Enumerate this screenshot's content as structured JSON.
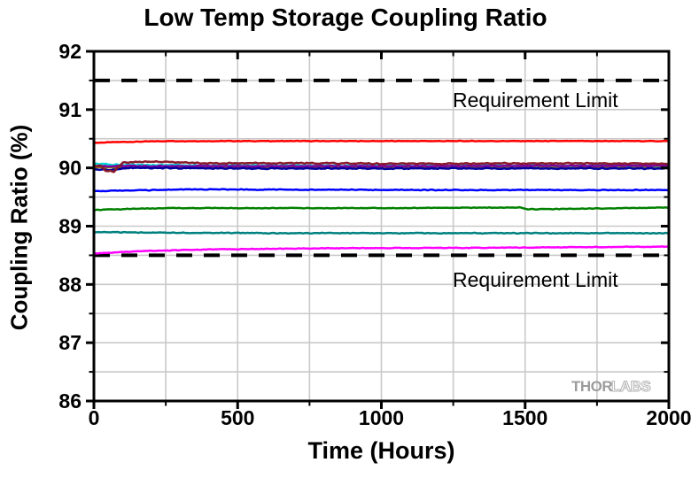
{
  "chart_data": {
    "type": "line",
    "title": "Low Temp Storage Coupling Ratio",
    "xlabel": "Time (Hours)",
    "ylabel": "Coupling Ratio (%)",
    "xlim": [
      0,
      2000
    ],
    "ylim": [
      86,
      92
    ],
    "x_major_ticks": [
      0,
      500,
      1000,
      1500,
      2000
    ],
    "x_tick_labels": [
      "0",
      "500",
      "1000",
      "1500",
      "2000"
    ],
    "x_minor_step": 250,
    "y_major_ticks": [
      86,
      87,
      88,
      89,
      90,
      91,
      92
    ],
    "y_tick_labels": [
      "86",
      "87",
      "88",
      "89",
      "90",
      "91",
      "92"
    ],
    "y_minor_step": 0.5,
    "grid": true,
    "legend": "none",
    "requirement_limits": {
      "upper": 91.5,
      "lower": 88.5,
      "label": "Requirement Limit"
    },
    "colors": {
      "grid": "#c9c9c9",
      "axis": "#000000",
      "limit": "#000000",
      "background": "#ffffff"
    },
    "series": [
      {
        "name": "red",
        "color": "#ff0000",
        "noise": 0.006,
        "keypoints": [
          [
            0,
            90.43
          ],
          [
            60,
            90.44
          ],
          [
            250,
            90.46
          ],
          [
            1000,
            90.46
          ],
          [
            2000,
            90.46
          ]
        ]
      },
      {
        "name": "blue",
        "color": "#0000ff",
        "noise": 0.008,
        "keypoints": [
          [
            0,
            89.6
          ],
          [
            300,
            89.63
          ],
          [
            1200,
            89.62
          ],
          [
            2000,
            89.62
          ]
        ]
      },
      {
        "name": "green",
        "color": "#008000",
        "noise": 0.007,
        "keypoints": [
          [
            0,
            89.28
          ],
          [
            250,
            89.31
          ],
          [
            1000,
            89.31
          ],
          [
            1480,
            89.32
          ],
          [
            1510,
            89.29
          ],
          [
            1700,
            89.3
          ],
          [
            2000,
            89.32
          ]
        ]
      },
      {
        "name": "dark-cyan",
        "color": "#008080",
        "noise": 0.008,
        "keypoints": [
          [
            0,
            88.9
          ],
          [
            200,
            88.89
          ],
          [
            600,
            88.88
          ],
          [
            2000,
            88.88
          ]
        ]
      },
      {
        "name": "magenta",
        "color": "#ff00ff",
        "noise": 0.007,
        "keypoints": [
          [
            0,
            88.53
          ],
          [
            150,
            88.57
          ],
          [
            400,
            88.6
          ],
          [
            800,
            88.62
          ],
          [
            1400,
            88.63
          ],
          [
            2000,
            88.65
          ]
        ]
      },
      {
        "name": "olive",
        "color": "#808000",
        "noise": 0.006,
        "keypoints": [
          [
            0,
            90.01
          ],
          [
            1000,
            90.01
          ],
          [
            2000,
            90.01
          ]
        ]
      },
      {
        "name": "cyan",
        "color": "#00d5d5",
        "noise": 0.014,
        "keypoints": [
          [
            0,
            90.07
          ],
          [
            100,
            90.05
          ],
          [
            500,
            90.04
          ],
          [
            2000,
            90.04
          ]
        ]
      },
      {
        "name": "purple",
        "color": "#8000a0",
        "noise": 0.01,
        "keypoints": [
          [
            0,
            90.03
          ],
          [
            1000,
            90.03
          ],
          [
            2000,
            90.04
          ]
        ]
      },
      {
        "name": "navy",
        "color": "#0000a0",
        "noise": 0.012,
        "keypoints": [
          [
            0,
            89.98
          ],
          [
            50,
            89.96
          ],
          [
            120,
            90.0
          ],
          [
            600,
            89.99
          ],
          [
            2000,
            89.99
          ]
        ]
      },
      {
        "name": "wine",
        "color": "#8b1a2a",
        "noise": 0.012,
        "keypoints": [
          [
            0,
            90.03
          ],
          [
            25,
            90.04
          ],
          [
            40,
            89.95
          ],
          [
            70,
            89.94
          ],
          [
            100,
            90.09
          ],
          [
            200,
            90.11
          ],
          [
            400,
            90.08
          ],
          [
            800,
            90.08
          ],
          [
            1200,
            90.07
          ],
          [
            1600,
            90.08
          ],
          [
            2000,
            90.07
          ]
        ]
      }
    ]
  },
  "watermark": {
    "solid": "THOR",
    "outline": "LABS"
  }
}
